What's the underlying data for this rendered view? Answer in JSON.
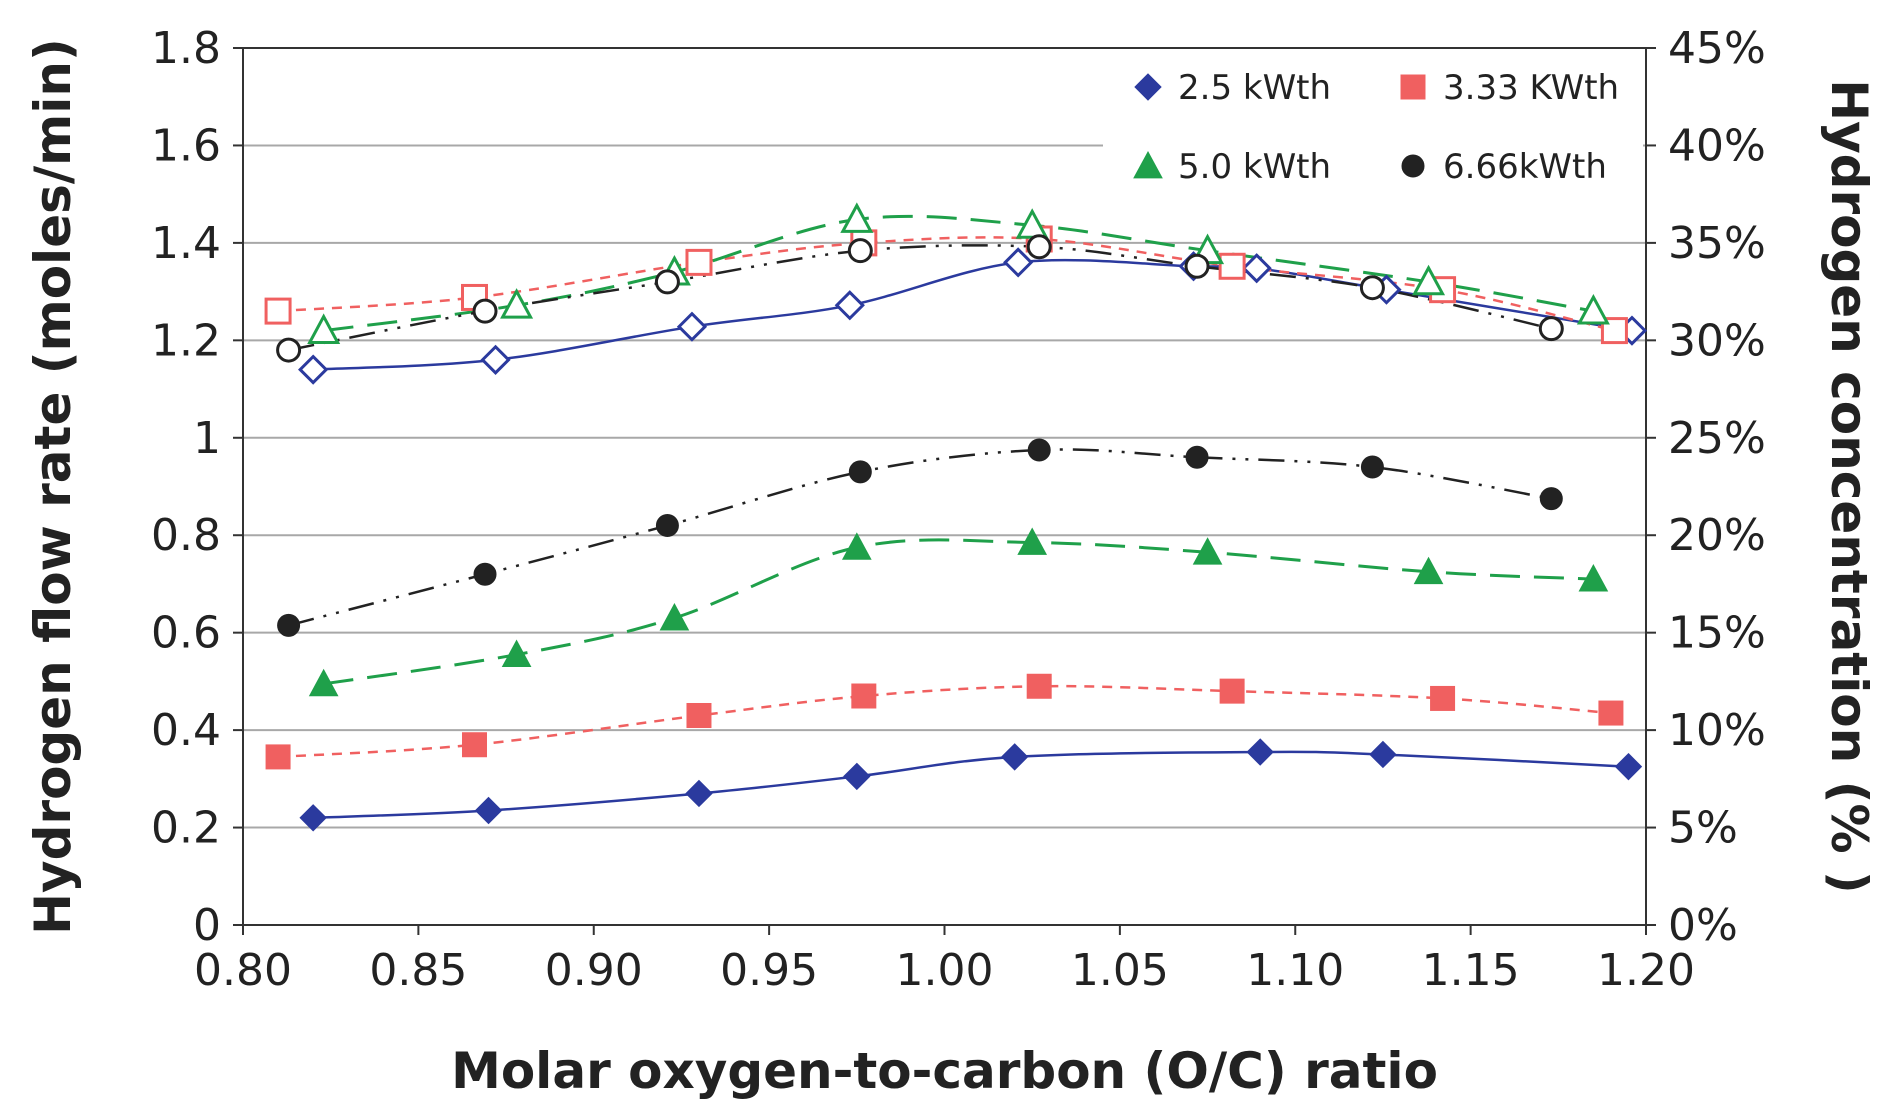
{
  "chart_data": {
    "type": "line",
    "title": "",
    "xlabel": "Molar oxygen-to-carbon (O/C) ratio",
    "ylabel": "Hydrogen flow rate  (moles/min)",
    "y2label": "Hydrogen concentration (% )",
    "xlim": [
      0.8,
      1.2
    ],
    "ylim": [
      0,
      1.8
    ],
    "y2lim": [
      0,
      45
    ],
    "xticks": [
      "0.80",
      "0.85",
      "0.90",
      "0.95",
      "1.00",
      "1.05",
      "1.10",
      "1.15",
      "1.20"
    ],
    "yticks": [
      "0",
      "0.2",
      "0.4",
      "0.6",
      "0.8",
      "1",
      "1.2",
      "1.4",
      "1.6",
      "1.8"
    ],
    "y2ticks": [
      "0%",
      "5%",
      "10%",
      "15%",
      "20%",
      "25%",
      "30%",
      "35%",
      "40%",
      "45%"
    ],
    "grid": true,
    "legend_position": "top-right",
    "legend": [
      "2.5 kWth",
      "3.33 KWth",
      "5.0 kWth",
      "6.66kWth"
    ],
    "series": [
      {
        "name": "2.5 kWth",
        "color": "#2b3a9e",
        "marker": "diamond",
        "dash": "solid",
        "flow_x": [
          0.82,
          0.87,
          0.93,
          0.975,
          1.02,
          1.09,
          1.125,
          1.195
        ],
        "flow": [
          0.22,
          0.235,
          0.27,
          0.305,
          0.345,
          0.355,
          0.35,
          0.325
        ],
        "conc_x": [
          0.82,
          0.872,
          0.928,
          0.973,
          1.021,
          1.071,
          1.089,
          1.126,
          1.196
        ],
        "conc": [
          28.5,
          29.0,
          30.7,
          31.8,
          34.0,
          33.8,
          33.7,
          32.6,
          30.5
        ]
      },
      {
        "name": "3.33 KWth",
        "color": "#f06060",
        "marker": "square",
        "dash": "short",
        "flow_x": [
          0.81,
          0.866,
          0.93,
          0.977,
          1.027,
          1.082,
          1.142,
          1.19
        ],
        "flow": [
          0.345,
          0.37,
          0.43,
          0.47,
          0.49,
          0.48,
          0.465,
          0.435
        ],
        "conc_x": [
          0.81,
          0.866,
          0.93,
          0.977,
          1.027,
          1.082,
          1.142,
          1.191
        ],
        "conc": [
          31.5,
          32.2,
          34.0,
          35.0,
          35.2,
          33.8,
          32.6,
          30.5
        ]
      },
      {
        "name": "5.0 kWth",
        "color": "#1fa04a",
        "marker": "triangle",
        "dash": "long",
        "flow_x": [
          0.823,
          0.878,
          0.923,
          0.975,
          1.025,
          1.075,
          1.138,
          1.185
        ],
        "flow": [
          0.495,
          0.555,
          0.63,
          0.775,
          0.785,
          0.765,
          0.725,
          0.71
        ],
        "conc_x": [
          0.823,
          0.878,
          0.923,
          0.975,
          1.025,
          1.075,
          1.138,
          1.185
        ],
        "conc": [
          30.5,
          31.8,
          33.5,
          36.2,
          35.9,
          34.6,
          33.0,
          31.5
        ]
      },
      {
        "name": "6.66kWth",
        "color": "#222222",
        "marker": "circle",
        "dash": "dashdot",
        "flow_x": [
          0.813,
          0.869,
          0.921,
          0.976,
          1.027,
          1.072,
          1.122,
          1.173
        ],
        "flow": [
          0.615,
          0.72,
          0.82,
          0.93,
          0.975,
          0.96,
          0.94,
          0.875
        ],
        "conc_x": [
          0.813,
          0.869,
          0.921,
          0.976,
          1.027,
          1.072,
          1.122,
          1.173
        ],
        "conc": [
          29.5,
          31.5,
          33.0,
          34.6,
          34.8,
          33.8,
          32.7,
          30.6
        ]
      }
    ]
  }
}
